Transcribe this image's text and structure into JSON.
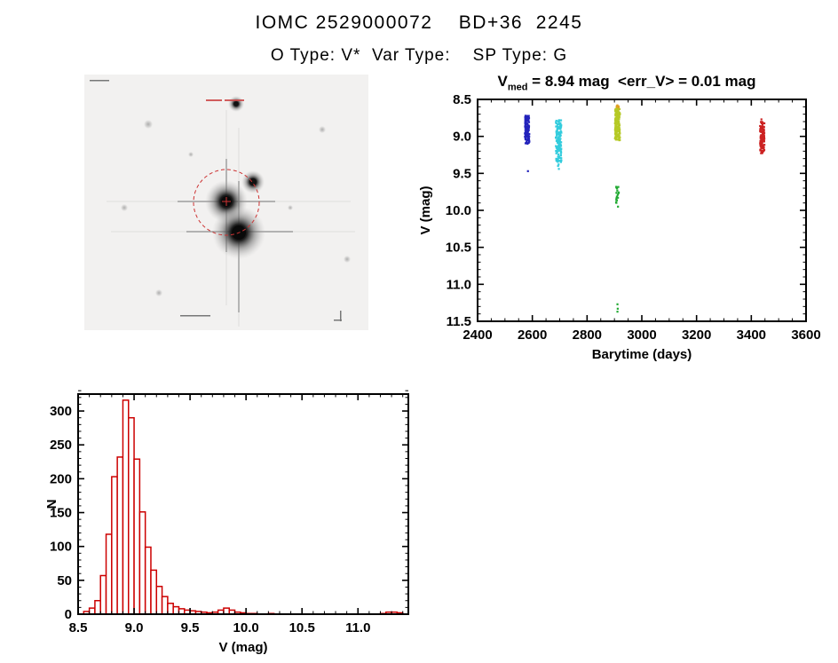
{
  "header": {
    "title": "IOMC 2529000072    BD+36  2245",
    "subtitle": "O Type: V*  Var Type:    SP Type: G"
  },
  "colors": {
    "accent_red": "#cc2222",
    "histogram_red": "#cc0000",
    "axis_black": "#000000"
  },
  "chart_data": [
    {
      "id": "lightcurve",
      "type": "scatter",
      "title": "V_med = 8.94 mag  <err_V> = 0.01 mag",
      "title_parts": {
        "prefix": "V",
        "sub": "med",
        "rest": " = 8.94 mag  <err_V> = 0.01 mag"
      },
      "xlabel": "Barytime (days)",
      "ylabel": "V (mag)",
      "xlim": [
        2400,
        3600
      ],
      "ylim": [
        8.5,
        11.5
      ],
      "y_inverted": true,
      "x_ticks": [
        2400,
        2600,
        2800,
        3000,
        3200,
        3400,
        3600
      ],
      "x_tick_labels": [
        "2400",
        "2600",
        "2800",
        "3000",
        "3200",
        "3400",
        "3600"
      ],
      "x_minor_step": 50,
      "y_ticks": [
        8.5,
        9.0,
        9.5,
        10.0,
        10.5,
        11.0,
        11.5
      ],
      "y_tick_labels": [
        "8.5",
        "9.0",
        "9.5",
        "10.0",
        "10.5",
        "11.0",
        "11.5"
      ],
      "y_minor_step": 0.1,
      "series": [
        {
          "name": "epoch-2580-blue",
          "color": "#2222bb",
          "x_center": 2581,
          "x_spread": 8,
          "v_min": 8.72,
          "v_max": 9.1,
          "n": 120,
          "extra_points": [
            [
              2584,
              9.47
            ]
          ]
        },
        {
          "name": "epoch-2695-cyan",
          "color": "#33ccdd",
          "x_center": 2696,
          "x_spread": 10,
          "v_min": 8.78,
          "v_max": 9.35,
          "n": 140,
          "extra_points": [
            [
              2694,
              9.4
            ],
            [
              2697,
              9.44
            ],
            [
              2696,
              9.38
            ]
          ]
        },
        {
          "name": "epoch-2910-orange",
          "color": "#e0a020",
          "x_center": 2912,
          "x_spread": 4,
          "v_min": 8.58,
          "v_max": 8.72,
          "n": 25,
          "extra_points": []
        },
        {
          "name": "epoch-2910-yellow",
          "color": "#b5c926",
          "x_center": 2911,
          "x_spread": 9,
          "v_min": 8.62,
          "v_max": 9.06,
          "n": 150,
          "extra_points": []
        },
        {
          "name": "epoch-2910-green",
          "color": "#22aa33",
          "x_center": 2911,
          "x_spread": 5,
          "v_min": 9.68,
          "v_max": 9.92,
          "n": 16,
          "extra_points": [
            [
              2911,
              11.27
            ],
            [
              2912,
              11.33
            ],
            [
              2911,
              11.37
            ],
            [
              2913,
              9.95
            ]
          ]
        },
        {
          "name": "epoch-3440-red",
          "color": "#cc2222",
          "x_center": 3440,
          "x_spread": 8,
          "v_min": 8.8,
          "v_max": 9.24,
          "n": 120,
          "extra_points": [
            [
              3437,
              8.77
            ]
          ]
        }
      ]
    },
    {
      "id": "histogram",
      "type": "bar",
      "xlabel": "V (mag)",
      "ylabel": "N",
      "xlim": [
        8.5,
        11.45
      ],
      "ylim": [
        0,
        325
      ],
      "x_ticks": [
        8.5,
        9.0,
        9.5,
        10.0,
        10.5,
        11.0
      ],
      "x_tick_labels": [
        "8.5",
        "9.0",
        "9.5",
        "10.0",
        "10.5",
        "11.0"
      ],
      "x_minor_step": 0.1,
      "y_ticks": [
        0,
        50,
        100,
        150,
        200,
        250,
        300
      ],
      "y_tick_labels": [
        "0",
        "50",
        "100",
        "150",
        "200",
        "250",
        "300"
      ],
      "y_minor_step": 10,
      "bar_color": "#cc0000",
      "bin_start": 8.5,
      "bin_width": 0.05,
      "counts": [
        0,
        4,
        9,
        20,
        57,
        118,
        203,
        232,
        316,
        290,
        229,
        151,
        99,
        65,
        41,
        26,
        16,
        11,
        8,
        6,
        5,
        4,
        3,
        2,
        3,
        6,
        9,
        6,
        3,
        2,
        1,
        1,
        0,
        0,
        1,
        0,
        0,
        0,
        0,
        0,
        0,
        0,
        0,
        0,
        0,
        0,
        0,
        0,
        0,
        0,
        0,
        0,
        0,
        0,
        1,
        3,
        3,
        2
      ]
    }
  ]
}
